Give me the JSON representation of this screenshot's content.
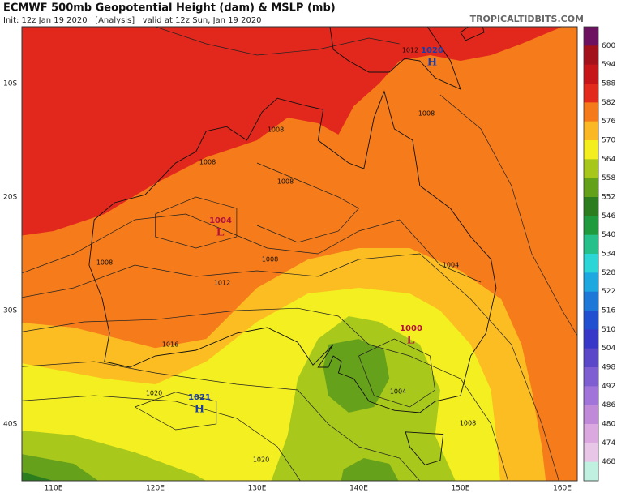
{
  "header": {
    "title": "ECMWF 500mb Geopotential Height (dam) & MSLP (mb)",
    "subtitle": "Init: 12z Jan 19 2020   [Analysis]   valid at 12z Sun, Jan 19 2020",
    "watermark": "TROPICALTIDBITS.COM"
  },
  "map": {
    "lat_labels": [
      "10S",
      "20S",
      "30S",
      "40S"
    ],
    "lon_labels": [
      "110E",
      "120E",
      "130E",
      "140E",
      "150E",
      "160E"
    ],
    "pressure_centers": [
      {
        "value": "1004",
        "symbol": "L"
      },
      {
        "value": "1000",
        "symbol": "L"
      },
      {
        "value": "1021",
        "symbol": "H"
      },
      {
        "value": "1020",
        "symbol": "H"
      }
    ],
    "contour_labels": [
      "1012",
      "1008",
      "1008",
      "1008",
      "1008",
      "1008",
      "1008",
      "1012",
      "1016",
      "1020",
      "1020",
      "1004",
      "1004",
      "1008"
    ]
  },
  "colorbar": {
    "labels": [
      "600",
      "594",
      "588",
      "582",
      "576",
      "570",
      "564",
      "558",
      "552",
      "546",
      "540",
      "534",
      "528",
      "522",
      "516",
      "510",
      "504",
      "498",
      "492",
      "486",
      "480",
      "474",
      "468"
    ]
  }
}
